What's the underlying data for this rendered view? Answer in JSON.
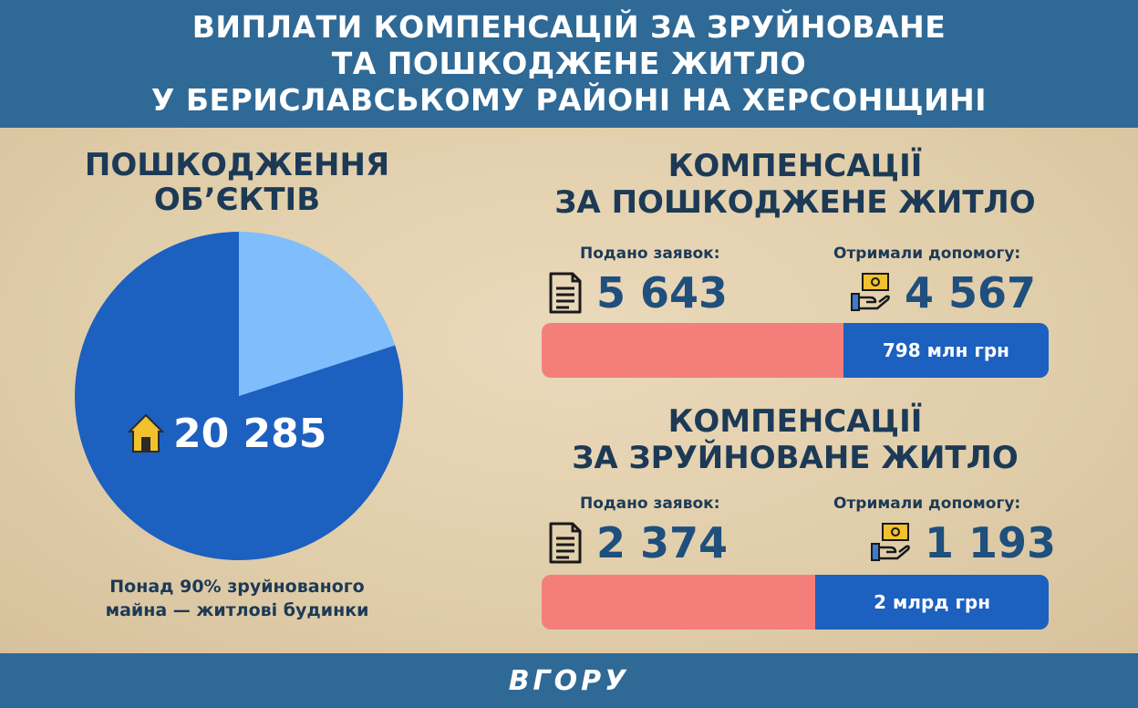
{
  "header": {
    "line1": "ВИПЛАТИ КОМПЕНСАЦІЙ ЗА ЗРУЙНОВАНЕ",
    "line2": "ТА ПОШКОДЖЕНЕ ЖИТЛО",
    "line3": "У БЕРИСЛАВСЬКОМУ РАЙОНІ НА ХЕРСОНЩИНІ"
  },
  "left": {
    "title_line1": "ПОШКОДЖЕННЯ",
    "title_line2": "ОБ’ЄКТІВ",
    "value": "20 285",
    "note_line1": "Понад 90% зруйнованого",
    "note_line2": "майна — житлові будинки"
  },
  "damaged": {
    "title_line1": "КОМПЕНСАЦІЇ",
    "title_line2": "ЗА ПОШКОДЖЕНЕ ЖИТЛО",
    "applied_label": "Подано заявок:",
    "applied_value": "5 643",
    "received_label": "Отримали допомогу:",
    "received_value": "4 567",
    "amount": "798 млн грн"
  },
  "destroyed": {
    "title_line1": "КОМПЕНСАЦІЇ",
    "title_line2": "ЗА ЗРУЙНОВАНЕ ЖИТЛО",
    "applied_label": "Подано заявок:",
    "applied_value": "2 374",
    "received_label": "Отримали допомогу:",
    "received_value": "1 193",
    "amount": "2 млрд грн"
  },
  "footer": {
    "logo": "ВГОРУ"
  },
  "colors": {
    "header_bg": "#2f6996",
    "pie_main": "#1c60c0",
    "pie_slice": "#7fbdfc",
    "bar_applied": "#f47f7a",
    "bar_received": "#1c60c0",
    "text_dark": "#1c3a56",
    "house_icon": "#f2c12e"
  },
  "icons": [
    "house-icon",
    "document-icon",
    "money-hand-icon"
  ],
  "chart_data": [
    {
      "type": "pie",
      "title": "ПОШКОДЖЕННЯ ОБ’ЄКТІВ",
      "total": 20285,
      "slices": [
        {
          "value": 0.8
        },
        {
          "value": 0.2
        }
      ]
    },
    {
      "type": "bar",
      "title": "КОМПЕНСАЦІЇ ЗА ПОШКОДЖЕНЕ ЖИТЛО",
      "categories": [
        "Подано заявок:",
        "Отримали допомогу:"
      ],
      "values": [
        5643,
        4567
      ],
      "received_share": 0.405
    },
    {
      "type": "bar",
      "title": "КОМПЕНСАЦІЇ ЗА ЗРУЙНОВАНЕ ЖИТЛО",
      "categories": [
        "Подано заявок:",
        "Отримали допомогу:"
      ],
      "values": [
        2374,
        1193
      ],
      "received_share": 0.46
    }
  ]
}
